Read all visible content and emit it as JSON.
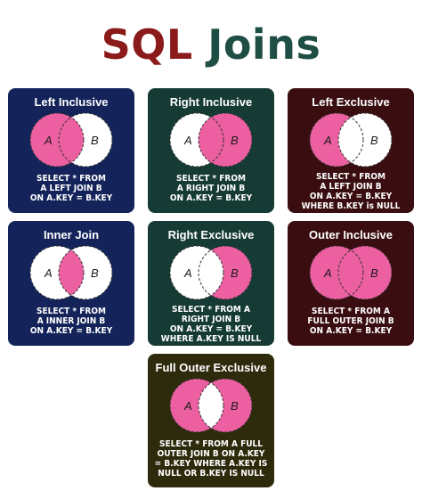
{
  "title": {
    "word1": "SQL",
    "word2": "Joins"
  },
  "colors": {
    "pink": "#ec5fa0",
    "white": "#ffffff",
    "navy": "#14245a",
    "green": "#163b34",
    "maroon": "#3a0d10",
    "olive": "#2e2b0c"
  },
  "cards": [
    {
      "title": "Left Inclusive",
      "sql": "SELECT * FROM\nA LEFT JOIN B\nON A.KEY = B.KEY",
      "label_a": "A",
      "label_b": "B"
    },
    {
      "title": "Right Inclusive",
      "sql": "SELECT * FROM\nA RIGHT JOIN B\nON A.KEY = B.KEY",
      "label_a": "A",
      "label_b": "B"
    },
    {
      "title": "Left Exclusive",
      "sql": "SELECT * FROM\nA LEFT JOIN B\nON A.KEY = B.KEY\nWHERE B.KEY is NULL",
      "label_a": "A",
      "label_b": "B"
    },
    {
      "title": "Inner Join",
      "sql": "SELECT * FROM\nA INNER JOIN B\nON A.KEY = B.KEY",
      "label_a": "A",
      "label_b": "B"
    },
    {
      "title": "Right Exclusive",
      "sql": "SELECT * FROM A\nRIGHT JOIN B\nON A.KEY = B.KEY\nWHERE A.KEY IS NULL",
      "label_a": "A",
      "label_b": "B"
    },
    {
      "title": "Outer Inclusive",
      "sql": "SELECT * FROM A\nFULL OUTER JOIN B\nON A.KEY = B.KEY",
      "label_a": "A",
      "label_b": "B"
    },
    {
      "title": "Full Outer Exclusive",
      "sql": "SELECT * FROM A FULL\nOUTER JOIN B ON A.KEY\n= B.KEY WHERE A.KEY IS\nNULL OR B.KEY IS NULL",
      "label_a": "A",
      "label_b": "B"
    }
  ]
}
